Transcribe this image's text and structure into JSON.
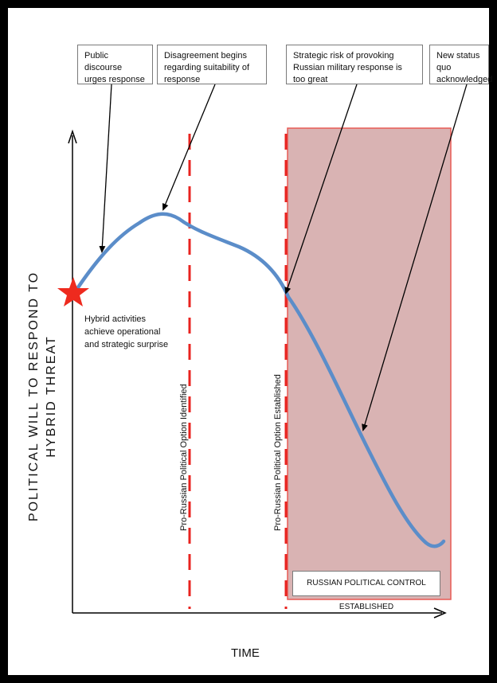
{
  "axes": {
    "y_label_line1": "POLITICAL WILL TO RESPOND TO",
    "y_label_line2": "HYBRID THREAT",
    "x_label": "TIME"
  },
  "callouts": [
    {
      "id": "public-discourse",
      "text": "Public discourse urges response"
    },
    {
      "id": "disagreement",
      "text": "Disagreement begins regarding suitability of response"
    },
    {
      "id": "strategic-risk",
      "text": "Strategic risk of provoking Russian military response is too great"
    },
    {
      "id": "new-status-quo",
      "text": "New status quo acknowledged"
    }
  ],
  "start_note": "Hybrid activities achieve operational and strategic surprise",
  "markers": {
    "option_identified": "Pro-Russian Political Option Identified",
    "option_established": "Pro-Russian Political Option Established"
  },
  "control_box": "RUSSIAN POLITICAL CONTROL ESTABLISHED",
  "colors": {
    "curve": "#5b8dc9",
    "dashed_lines": "#e8231f",
    "star": "#ee2a1e",
    "control_region_fill": "#d9b3b3",
    "control_region_border": "#e85a55"
  }
}
